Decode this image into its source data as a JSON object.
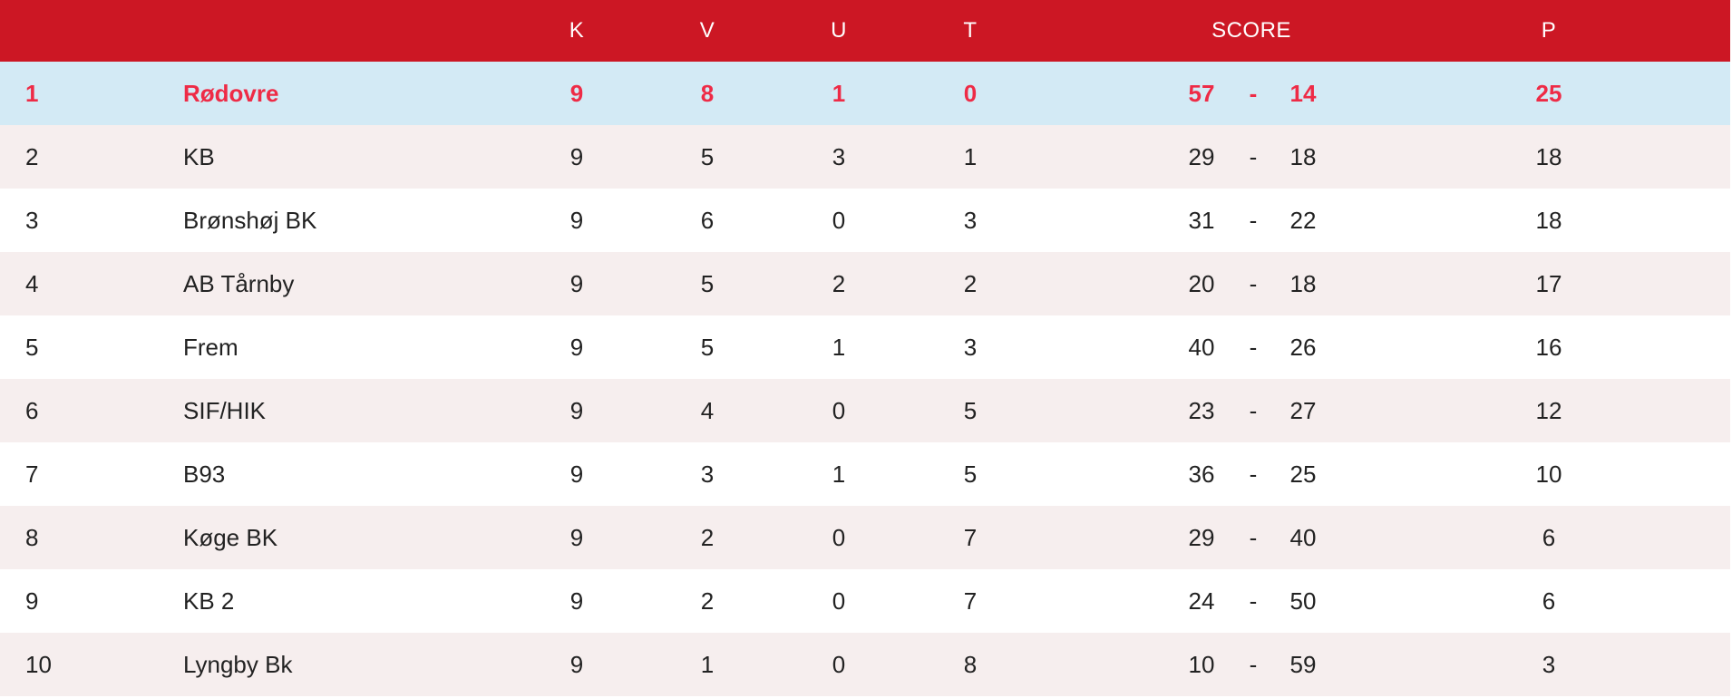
{
  "standings": {
    "headers": {
      "rank": "",
      "team": "",
      "k": "K",
      "v": "V",
      "u": "U",
      "t": "T",
      "score": "SCORE",
      "p": "P"
    },
    "rows": [
      {
        "rank": "1",
        "team": "Rødovre",
        "k": "9",
        "v": "8",
        "u": "1",
        "t": "0",
        "goals_for": "57",
        "separator": "-",
        "goals_against": "14",
        "p": "25"
      },
      {
        "rank": "2",
        "team": "KB",
        "k": "9",
        "v": "5",
        "u": "3",
        "t": "1",
        "goals_for": "29",
        "separator": "-",
        "goals_against": "18",
        "p": "18"
      },
      {
        "rank": "3",
        "team": "Brønshøj BK",
        "k": "9",
        "v": "6",
        "u": "0",
        "t": "3",
        "goals_for": "31",
        "separator": "-",
        "goals_against": "22",
        "p": "18"
      },
      {
        "rank": "4",
        "team": "AB Tårnby",
        "k": "9",
        "v": "5",
        "u": "2",
        "t": "2",
        "goals_for": "20",
        "separator": "-",
        "goals_against": "18",
        "p": "17"
      },
      {
        "rank": "5",
        "team": "Frem",
        "k": "9",
        "v": "5",
        "u": "1",
        "t": "3",
        "goals_for": "40",
        "separator": "-",
        "goals_against": "26",
        "p": "16"
      },
      {
        "rank": "6",
        "team": "SIF/HIK",
        "k": "9",
        "v": "4",
        "u": "0",
        "t": "5",
        "goals_for": "23",
        "separator": "-",
        "goals_against": "27",
        "p": "12"
      },
      {
        "rank": "7",
        "team": "B93",
        "k": "9",
        "v": "3",
        "u": "1",
        "t": "5",
        "goals_for": "36",
        "separator": "-",
        "goals_against": "25",
        "p": "10"
      },
      {
        "rank": "8",
        "team": "Køge BK",
        "k": "9",
        "v": "2",
        "u": "0",
        "t": "7",
        "goals_for": "29",
        "separator": "-",
        "goals_against": "40",
        "p": "6"
      },
      {
        "rank": "9",
        "team": "KB 2",
        "k": "9",
        "v": "2",
        "u": "0",
        "t": "7",
        "goals_for": "24",
        "separator": "-",
        "goals_against": "50",
        "p": "6"
      },
      {
        "rank": "10",
        "team": "Lyngby Bk",
        "k": "9",
        "v": "1",
        "u": "0",
        "t": "8",
        "goals_for": "10",
        "separator": "-",
        "goals_against": "59",
        "p": "3"
      }
    ]
  },
  "colors": {
    "header_bg": "#cc1724",
    "highlight_bg": "#d3eaf5",
    "highlight_text": "#ee2b46",
    "stripe_bg": "#f6eeee"
  }
}
